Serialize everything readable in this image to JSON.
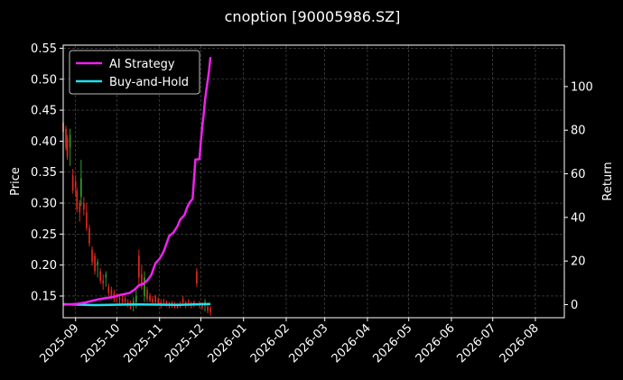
{
  "chart_data": {
    "type": "line",
    "title": "cnoption [90005986.SZ]",
    "ylabel_left": "Price",
    "ylabel_right": "Return",
    "x_ticks": [
      "2025-09",
      "2025-10",
      "2025-11",
      "2025-12",
      "2026-01",
      "2026-02",
      "2026-03",
      "2026-04",
      "2026-05",
      "2026-06",
      "2026-07",
      "2026-08"
    ],
    "xlim": [
      "2025-08-23",
      "2026-08-22"
    ],
    "ylim_left": [
      0.115,
      0.555
    ],
    "ylim_right": [
      -6,
      119
    ],
    "yticks_left": [
      "0.15",
      "0.20",
      "0.25",
      "0.30",
      "0.35",
      "0.40",
      "0.45",
      "0.50",
      "0.55"
    ],
    "yticks_right": [
      "0",
      "20",
      "40",
      "60",
      "80",
      "100"
    ],
    "grid": true,
    "legend_position": "top-left",
    "colors": {
      "background": "#000000",
      "up_candle": "#2ca02c",
      "down_candle": "#e0281c",
      "ai_strategy": "#ee22ee",
      "buy_and_hold": "#22e0f0",
      "grid": "#555555"
    },
    "series": [
      {
        "name": "AI Strategy",
        "axis": "right",
        "points": [
          [
            "2025-08-23",
            0.0
          ],
          [
            "2025-09-01",
            0.3
          ],
          [
            "2025-09-08",
            1.0
          ],
          [
            "2025-09-12",
            1.6
          ],
          [
            "2025-09-17",
            2.3
          ],
          [
            "2025-09-22",
            2.9
          ],
          [
            "2025-09-28",
            3.5
          ],
          [
            "2025-10-03",
            4.4
          ],
          [
            "2025-10-10",
            5.3
          ],
          [
            "2025-10-14",
            7.0
          ],
          [
            "2025-10-17",
            8.9
          ],
          [
            "2025-10-20",
            9.5
          ],
          [
            "2025-10-23",
            11.0
          ],
          [
            "2025-10-26",
            13.6
          ],
          [
            "2025-10-29",
            19.0
          ],
          [
            "2025-11-01",
            21.0
          ],
          [
            "2025-11-04",
            24.4
          ],
          [
            "2025-11-06",
            28.0
          ],
          [
            "2025-11-08",
            31.5
          ],
          [
            "2025-11-11",
            33.0
          ],
          [
            "2025-11-14",
            36.0
          ],
          [
            "2025-11-16",
            39.0
          ],
          [
            "2025-11-19",
            41.0
          ],
          [
            "2025-11-21",
            44.5
          ],
          [
            "2025-11-23",
            47.0
          ],
          [
            "2025-11-25",
            48.5
          ],
          [
            "2025-11-27",
            66.5
          ],
          [
            "2025-11-30",
            66.7
          ],
          [
            "2025-12-01",
            75.0
          ],
          [
            "2025-12-02",
            81.5
          ],
          [
            "2025-12-03",
            87.0
          ],
          [
            "2025-12-04",
            93.5
          ],
          [
            "2025-12-05",
            98.5
          ],
          [
            "2025-12-06",
            103.0
          ],
          [
            "2025-12-07",
            107.5
          ],
          [
            "2025-12-08",
            113.5
          ]
        ]
      },
      {
        "name": "Buy-and-Hold",
        "axis": "right",
        "points": [
          [
            "2025-08-23",
            0.2
          ],
          [
            "2025-09-15",
            -0.2
          ],
          [
            "2025-10-15",
            0.1
          ],
          [
            "2025-11-15",
            -0.1
          ],
          [
            "2025-12-08",
            0.3
          ]
        ]
      },
      {
        "name": "Price candles",
        "axis": "left",
        "ohlc_date_open_high_low_close": [
          [
            "2025-08-23",
            0.43,
            0.435,
            0.395,
            0.415
          ],
          [
            "2025-08-25",
            0.42,
            0.425,
            0.385,
            0.39
          ],
          [
            "2025-08-26",
            0.405,
            0.41,
            0.37,
            0.375
          ],
          [
            "2025-08-28",
            0.39,
            0.42,
            0.36,
            0.41
          ],
          [
            "2025-08-30",
            0.345,
            0.355,
            0.315,
            0.32
          ],
          [
            "2025-09-01",
            0.335,
            0.345,
            0.31,
            0.325
          ],
          [
            "2025-09-02",
            0.32,
            0.325,
            0.285,
            0.29
          ],
          [
            "2025-09-04",
            0.3,
            0.305,
            0.27,
            0.285
          ],
          [
            "2025-09-05",
            0.31,
            0.37,
            0.295,
            0.34
          ],
          [
            "2025-09-07",
            0.3,
            0.31,
            0.28,
            0.29
          ],
          [
            "2025-09-09",
            0.285,
            0.3,
            0.255,
            0.26
          ],
          [
            "2025-09-11",
            0.26,
            0.265,
            0.23,
            0.235
          ],
          [
            "2025-09-13",
            0.225,
            0.23,
            0.2,
            0.205
          ],
          [
            "2025-09-15",
            0.215,
            0.22,
            0.185,
            0.19
          ],
          [
            "2025-09-17",
            0.2,
            0.21,
            0.18,
            0.205
          ],
          [
            "2025-09-19",
            0.19,
            0.195,
            0.17,
            0.175
          ],
          [
            "2025-09-21",
            0.175,
            0.185,
            0.16,
            0.17
          ],
          [
            "2025-09-23",
            0.18,
            0.19,
            0.165,
            0.185
          ],
          [
            "2025-09-25",
            0.165,
            0.17,
            0.15,
            0.155
          ],
          [
            "2025-09-27",
            0.16,
            0.165,
            0.145,
            0.15
          ],
          [
            "2025-09-29",
            0.155,
            0.16,
            0.14,
            0.145
          ],
          [
            "2025-10-01",
            0.15,
            0.155,
            0.14,
            0.148
          ],
          [
            "2025-10-03",
            0.147,
            0.152,
            0.138,
            0.145
          ],
          [
            "2025-10-05",
            0.145,
            0.15,
            0.136,
            0.142
          ],
          [
            "2025-10-07",
            0.146,
            0.15,
            0.138,
            0.141
          ],
          [
            "2025-10-09",
            0.14,
            0.145,
            0.132,
            0.138
          ],
          [
            "2025-10-11",
            0.138,
            0.143,
            0.128,
            0.132
          ],
          [
            "2025-10-13",
            0.135,
            0.148,
            0.125,
            0.142
          ],
          [
            "2025-10-15",
            0.14,
            0.16,
            0.13,
            0.15
          ],
          [
            "2025-10-17",
            0.215,
            0.225,
            0.17,
            0.18
          ],
          [
            "2025-10-19",
            0.185,
            0.2,
            0.16,
            0.165
          ],
          [
            "2025-10-21",
            0.15,
            0.19,
            0.14,
            0.18
          ],
          [
            "2025-10-23",
            0.16,
            0.165,
            0.14,
            0.145
          ],
          [
            "2025-10-25",
            0.15,
            0.155,
            0.14,
            0.142
          ],
          [
            "2025-10-27",
            0.145,
            0.15,
            0.135,
            0.14
          ],
          [
            "2025-10-29",
            0.15,
            0.152,
            0.137,
            0.14
          ],
          [
            "2025-10-31",
            0.145,
            0.148,
            0.135,
            0.138
          ],
          [
            "2025-11-02",
            0.14,
            0.145,
            0.13,
            0.137
          ],
          [
            "2025-11-04",
            0.142,
            0.146,
            0.134,
            0.14
          ],
          [
            "2025-11-06",
            0.14,
            0.143,
            0.133,
            0.136
          ],
          [
            "2025-11-08",
            0.138,
            0.141,
            0.13,
            0.134
          ],
          [
            "2025-11-10",
            0.139,
            0.142,
            0.131,
            0.135
          ],
          [
            "2025-11-12",
            0.137,
            0.14,
            0.13,
            0.132
          ],
          [
            "2025-11-14",
            0.136,
            0.139,
            0.129,
            0.131
          ],
          [
            "2025-11-16",
            0.138,
            0.141,
            0.131,
            0.134
          ],
          [
            "2025-11-18",
            0.145,
            0.15,
            0.135,
            0.14
          ],
          [
            "2025-11-20",
            0.14,
            0.142,
            0.13,
            0.135
          ],
          [
            "2025-11-22",
            0.142,
            0.145,
            0.133,
            0.14
          ],
          [
            "2025-11-24",
            0.138,
            0.141,
            0.13,
            0.134
          ],
          [
            "2025-11-26",
            0.14,
            0.143,
            0.132,
            0.136
          ],
          [
            "2025-11-28",
            0.19,
            0.195,
            0.165,
            0.17
          ],
          [
            "2025-11-30",
            0.138,
            0.142,
            0.13,
            0.135
          ],
          [
            "2025-12-02",
            0.136,
            0.14,
            0.128,
            0.132
          ],
          [
            "2025-12-04",
            0.135,
            0.145,
            0.125,
            0.14
          ],
          [
            "2025-12-06",
            0.133,
            0.137,
            0.122,
            0.126
          ],
          [
            "2025-12-08",
            0.13,
            0.134,
            0.118,
            0.124
          ]
        ]
      }
    ]
  }
}
